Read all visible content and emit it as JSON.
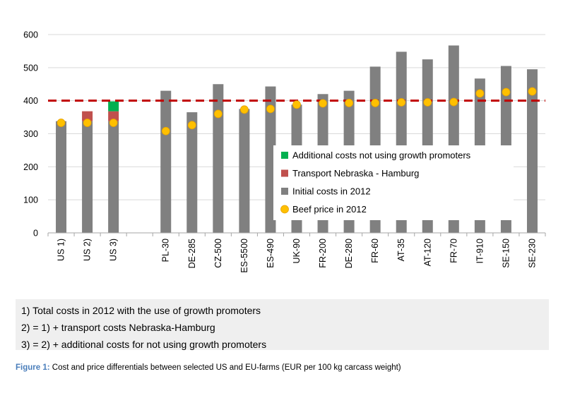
{
  "chart_data": {
    "type": "bar",
    "title": "",
    "xlabel": "",
    "ylabel": "",
    "ylim": [
      0,
      600
    ],
    "yticks": [
      0,
      100,
      200,
      300,
      400,
      500,
      600
    ],
    "grid": true,
    "legend_placement": "center-right",
    "categories": [
      "US 1)",
      "US 2)",
      "US 3)",
      "",
      "PL-30",
      "DE-285",
      "CZ-500",
      "ES-5500",
      "ES-490",
      "UK-90",
      "FR-200",
      "DE-280",
      "FR-60",
      "AT-35",
      "AT-120",
      "FR-70",
      "IT-910",
      "SE-150",
      "SE-230"
    ],
    "series": [
      {
        "name": "Initial costs in 2012",
        "kind": "bar",
        "color": "#808080",
        "values": [
          338,
          338,
          338,
          null,
          430,
          365,
          450,
          375,
          443,
          388,
          420,
          430,
          503,
          548,
          525,
          567,
          467,
          505,
          495
        ]
      },
      {
        "name": "Transport Nebraska - Hamburg",
        "kind": "bar",
        "color": "#c0504d",
        "values": [
          null,
          30,
          30,
          null,
          null,
          null,
          null,
          null,
          null,
          null,
          null,
          null,
          null,
          null,
          null,
          null,
          null,
          null,
          null
        ]
      },
      {
        "name": "Additional costs not using growth promoters",
        "kind": "bar",
        "color": "#00b050",
        "values": [
          null,
          null,
          30,
          null,
          null,
          null,
          null,
          null,
          null,
          null,
          null,
          null,
          null,
          null,
          null,
          null,
          null,
          null,
          null
        ]
      },
      {
        "name": "Beef price in 2012",
        "kind": "scatter",
        "color": "#ffc000",
        "values": [
          333,
          333,
          333,
          null,
          308,
          326,
          360,
          373,
          375,
          388,
          392,
          393,
          393,
          395,
          395,
          396,
          422,
          426,
          428
        ]
      }
    ],
    "reference_line": {
      "value": 400,
      "color": "#c00000",
      "style": "dashed"
    },
    "legend_order": [
      "Additional costs not using growth promoters",
      "Transport Nebraska - Hamburg",
      "Initial costs in 2012",
      "Beef price in 2012"
    ]
  },
  "notes": [
    "1) Total costs in 2012 with the use of growth promoters",
    "2) = 1) + transport costs Nebraska-Hamburg",
    "3) = 2) + additional costs for not using growth promoters"
  ],
  "caption": {
    "label": "Figure 1:",
    "text": " Cost and price differentials between selected US and EU-farms (EUR per 100 kg carcass weight)"
  }
}
